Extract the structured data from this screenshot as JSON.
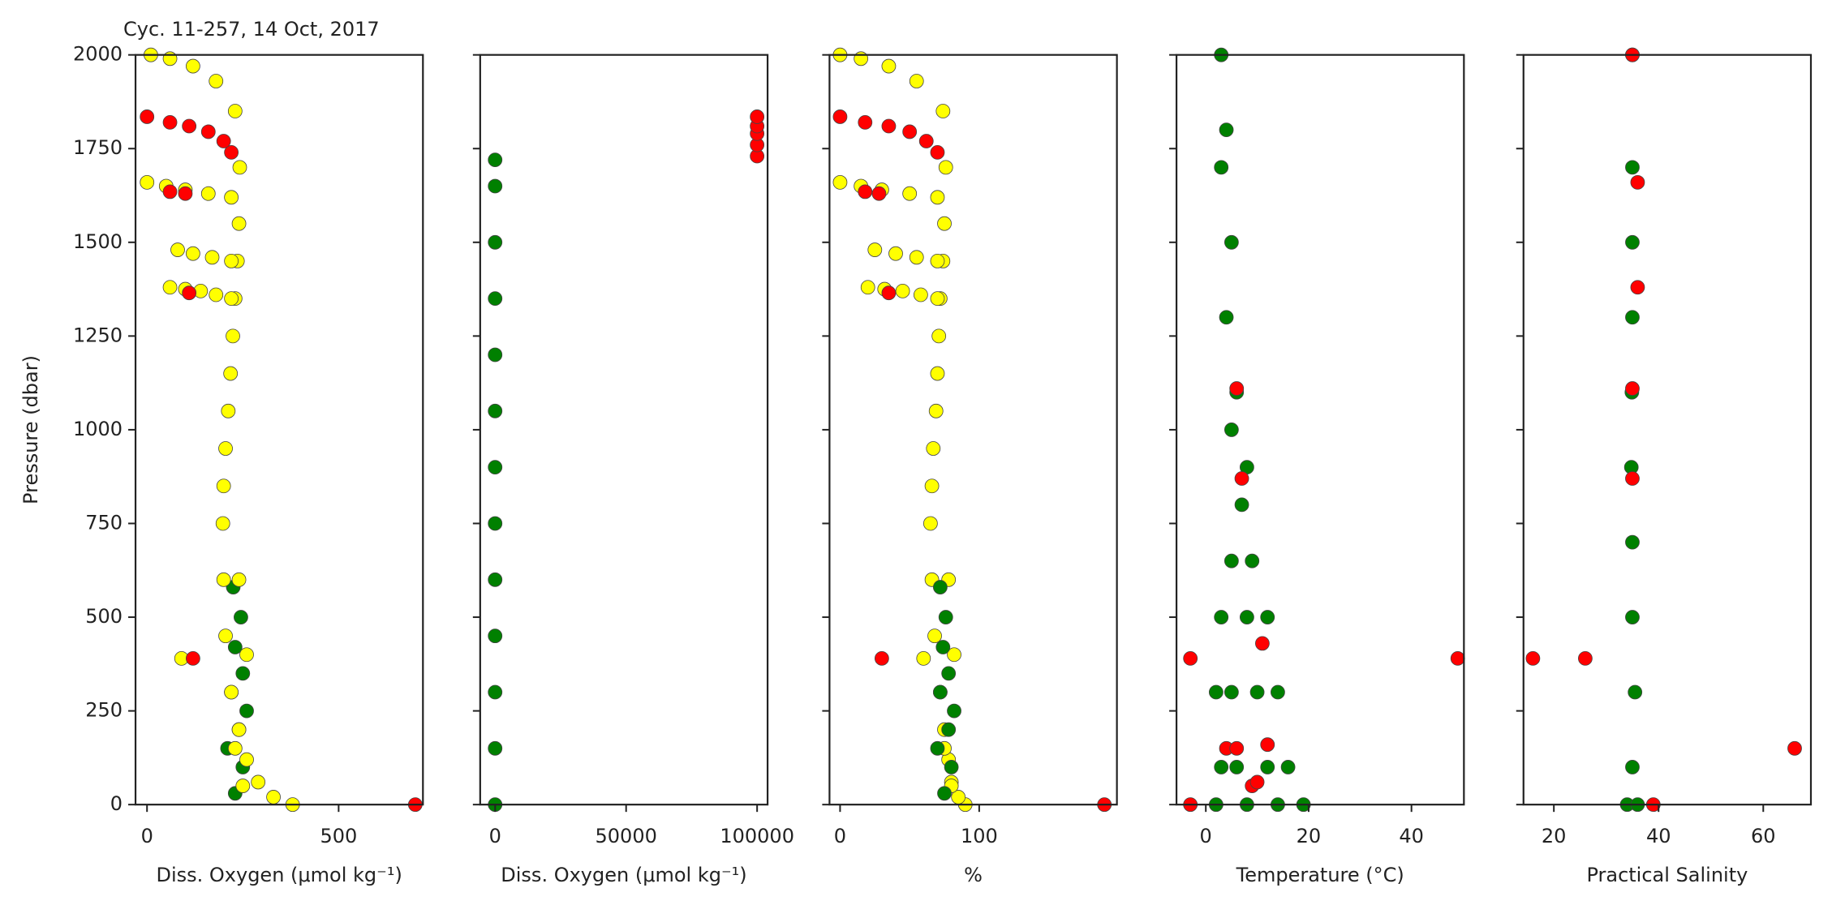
{
  "chart_data": [
    {
      "type": "scatter",
      "title": "Cyc. 11-257, 14 Oct, 2017",
      "ylabel": "Pressure (dbar)",
      "xlabel": "Diss. Oxygen (μmol kg⁻¹)",
      "xlim": [
        -30,
        720
      ],
      "xticks": [
        0,
        500
      ],
      "ylim": [
        2000,
        0
      ],
      "yticks": [
        0,
        250,
        500,
        750,
        1000,
        1250,
        1500,
        1750,
        2000
      ],
      "series": [
        {
          "color": "#008000",
          "x": [
            230,
            250,
            210,
            240,
            260,
            220,
            250,
            230,
            245,
            225
          ],
          "values": [
            30,
            100,
            150,
            200,
            250,
            300,
            350,
            420,
            500,
            580
          ]
        },
        {
          "color": "#ffff00",
          "x": [
            380,
            330,
            290,
            260,
            240,
            220,
            205,
            200,
            198,
            200,
            205,
            212,
            218,
            224,
            230,
            236,
            240,
            242,
            230,
            180,
            120,
            60,
            10,
            220,
            180,
            140,
            100,
            60,
            220,
            170,
            120,
            80,
            220,
            160,
            100,
            50,
            0,
            90,
            250,
            230,
            260,
            240
          ],
          "values": [
            0,
            20,
            60,
            120,
            200,
            300,
            450,
            600,
            750,
            850,
            950,
            1050,
            1150,
            1250,
            1350,
            1450,
            1550,
            1700,
            1850,
            1930,
            1970,
            1990,
            2000,
            1350,
            1360,
            1370,
            1375,
            1380,
            1450,
            1460,
            1470,
            1480,
            1620,
            1630,
            1640,
            1650,
            1660,
            390,
            50,
            150,
            400,
            600
          ]
        },
        {
          "color": "#ff0000",
          "x": [
            700,
            120,
            110,
            60,
            100,
            220,
            200,
            160,
            110,
            60,
            0
          ],
          "values": [
            0,
            390,
            1365,
            1635,
            1630,
            1740,
            1770,
            1795,
            1810,
            1820,
            1835
          ]
        }
      ]
    },
    {
      "type": "scatter",
      "xlabel": "Diss. Oxygen (μmol kg⁻¹)",
      "xlim": [
        -5700,
        104000
      ],
      "xticks": [
        0,
        50000,
        100000
      ],
      "series": [
        {
          "color": "#008000",
          "x": [
            0,
            0,
            0,
            0,
            0,
            0,
            0,
            0,
            0,
            0,
            0,
            0,
            0
          ],
          "values": [
            0,
            150,
            300,
            450,
            600,
            750,
            900,
            1050,
            1200,
            1350,
            1500,
            1650,
            1720
          ]
        },
        {
          "color": "#ff0000",
          "x": [
            100000,
            100000,
            100000,
            100000,
            100000
          ],
          "values": [
            1730,
            1760,
            1790,
            1810,
            1835
          ]
        }
      ]
    },
    {
      "type": "scatter",
      "xlabel": "%",
      "xlim": [
        -7.6,
        199
      ],
      "xticks": [
        0,
        100
      ],
      "series": [
        {
          "color": "#ffff00",
          "x": [
            90,
            85,
            80,
            78,
            75,
            72,
            68,
            66,
            65,
            66,
            67,
            69,
            70,
            71,
            72,
            74,
            75,
            76,
            74,
            55,
            35,
            15,
            0,
            70,
            58,
            45,
            32,
            20,
            70,
            55,
            40,
            25,
            70,
            50,
            30,
            15,
            0,
            60,
            80,
            75,
            82,
            78
          ],
          "values": [
            0,
            20,
            60,
            120,
            200,
            300,
            450,
            600,
            750,
            850,
            950,
            1050,
            1150,
            1250,
            1350,
            1450,
            1550,
            1700,
            1850,
            1930,
            1970,
            1990,
            2000,
            1350,
            1360,
            1370,
            1375,
            1380,
            1450,
            1460,
            1470,
            1480,
            1620,
            1630,
            1640,
            1650,
            1660,
            390,
            50,
            150,
            400,
            600
          ]
        },
        {
          "color": "#008000",
          "x": [
            75,
            80,
            70,
            78,
            82,
            72,
            78,
            74,
            76,
            72
          ],
          "values": [
            30,
            100,
            150,
            200,
            250,
            300,
            350,
            420,
            500,
            580
          ]
        },
        {
          "color": "#ff0000",
          "x": [
            190,
            30,
            35,
            18,
            28,
            70,
            62,
            50,
            35,
            18,
            0
          ],
          "values": [
            0,
            390,
            1365,
            1635,
            1630,
            1740,
            1770,
            1795,
            1810,
            1820,
            1835
          ]
        }
      ]
    },
    {
      "type": "scatter",
      "xlabel": "Temperature (°C)",
      "xlim": [
        -5.7,
        50.2
      ],
      "xticks": [
        0,
        20,
        40
      ],
      "series": [
        {
          "color": "#008000",
          "x": [
            2,
            8,
            14,
            19,
            3,
            6,
            12,
            16,
            2,
            5,
            10,
            14,
            3,
            8,
            12,
            5,
            9,
            7,
            8,
            5,
            6,
            4,
            5,
            3,
            4,
            3
          ],
          "values": [
            0,
            0,
            0,
            0,
            100,
            100,
            100,
            100,
            300,
            300,
            300,
            300,
            500,
            500,
            500,
            650,
            650,
            800,
            900,
            1000,
            1100,
            1300,
            1500,
            1700,
            1800,
            2000
          ]
        },
        {
          "color": "#ff0000",
          "x": [
            -3,
            9,
            10,
            4,
            6,
            12,
            -3,
            49,
            11,
            7,
            6
          ],
          "values": [
            0,
            50,
            60,
            150,
            150,
            160,
            390,
            390,
            430,
            870,
            1110
          ]
        }
      ]
    },
    {
      "type": "scatter",
      "xlabel": "Practical Salinity",
      "xlim": [
        14.2,
        69.1
      ],
      "xticks": [
        20,
        40,
        60
      ],
      "series": [
        {
          "color": "#008000",
          "x": [
            34,
            36,
            35,
            35.5,
            35,
            35,
            34.8,
            34.9,
            35,
            35,
            35,
            35
          ],
          "values": [
            0,
            0,
            100,
            300,
            500,
            700,
            900,
            1100,
            1300,
            1500,
            1700,
            2000
          ]
        },
        {
          "color": "#ff0000",
          "x": [
            39,
            66,
            16,
            26,
            35,
            35,
            36,
            36,
            35
          ],
          "values": [
            0,
            150,
            390,
            390,
            870,
            1110,
            1380,
            1660,
            2000
          ]
        }
      ]
    }
  ]
}
